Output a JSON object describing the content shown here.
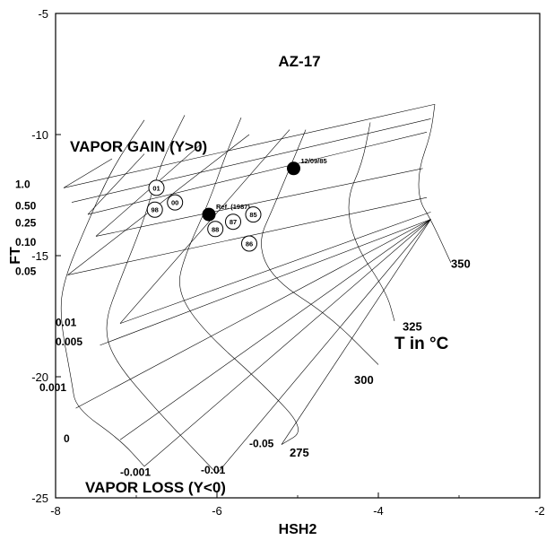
{
  "chart_data": {
    "type": "scatter",
    "title": "AZ-17",
    "xlabel": "HSH2",
    "ylabel": "FT",
    "xlim": [
      -8,
      -2
    ],
    "ylim": [
      -25,
      -5
    ],
    "xticks": [
      "-8",
      "-6",
      "-4",
      "-2"
    ],
    "yticks": [
      "-5",
      "-10",
      "-15",
      "-20",
      "-25"
    ],
    "annotations": {
      "vapor_gain": "VAPOR GAIN (Y>0)",
      "vapor_loss": "VAPOR LOSS (Y<0)",
      "temp_unit": "T in °C"
    },
    "y_labels": [
      {
        "label": "1.0",
        "x": -8.5,
        "y": -12.2
      },
      {
        "label": "0.50",
        "x": -8.5,
        "y": -13.1
      },
      {
        "label": "0.25",
        "x": -8.5,
        "y": -13.8
      },
      {
        "label": "0.10",
        "x": -8.5,
        "y": -14.6
      },
      {
        "label": "0.05",
        "x": -8.5,
        "y": -15.8
      },
      {
        "label": "0.01",
        "x": -8.0,
        "y": -17.9
      },
      {
        "label": "0.005",
        "x": -8.0,
        "y": -18.7
      },
      {
        "label": "0.001",
        "x": -8.2,
        "y": -20.6
      },
      {
        "label": "0",
        "x": -7.9,
        "y": -22.7
      },
      {
        "label": "-0.001",
        "x": -7.2,
        "y": -24.1
      },
      {
        "label": "-0.01",
        "x": -6.2,
        "y": -24.0
      },
      {
        "label": "-0.05",
        "x": -5.6,
        "y": -22.9
      }
    ],
    "temperature_labels": [
      {
        "label": "275",
        "x": -5.1,
        "y": -23.3
      },
      {
        "label": "300",
        "x": -4.3,
        "y": -20.3
      },
      {
        "label": "325",
        "x": -3.7,
        "y": -18.1
      },
      {
        "label": "350",
        "x": -3.1,
        "y": -15.5
      }
    ],
    "points": [
      {
        "label": "01",
        "x": -6.75,
        "y": -12.2,
        "marker": "open"
      },
      {
        "label": "00",
        "x": -6.52,
        "y": -12.8,
        "marker": "open"
      },
      {
        "label": "98",
        "x": -6.77,
        "y": -13.1,
        "marker": "open"
      },
      {
        "label": "Ref. (1987)",
        "x": -6.1,
        "y": -13.3,
        "marker": "filled"
      },
      {
        "label": "12/09/85",
        "x": -5.05,
        "y": -11.4,
        "marker": "filled"
      },
      {
        "label": "85",
        "x": -5.55,
        "y": -13.3,
        "marker": "open"
      },
      {
        "label": "87",
        "x": -5.8,
        "y": -13.6,
        "marker": "open"
      },
      {
        "label": "88",
        "x": -6.02,
        "y": -13.9,
        "marker": "open"
      },
      {
        "label": "86",
        "x": -5.6,
        "y": -14.5,
        "marker": "open"
      }
    ],
    "grid": {
      "converge_point": [
        -3.35,
        -13.5
      ],
      "fan_lines": [
        {
          "y": 0.005,
          "start": [
            -7.45,
            -18.7
          ]
        },
        {
          "y": 0.001,
          "start": [
            -7.75,
            -21.3
          ]
        },
        {
          "y": 0,
          "start": [
            -7.2,
            -22.6
          ]
        },
        {
          "y": -0.001,
          "start": [
            -6.9,
            -23.7
          ]
        },
        {
          "y": -0.01,
          "start": [
            -6.0,
            -24.0
          ]
        },
        {
          "y": -0.05,
          "start": [
            -5.2,
            -22.8
          ]
        }
      ],
      "gain_lines": [
        {
          "y": 1.0,
          "from": [
            -7.9,
            -12.2
          ],
          "to": [
            -3.3,
            -8.75
          ]
        },
        {
          "y": 0.5,
          "from": [
            -7.8,
            -12.8
          ],
          "to": [
            -3.35,
            -9.35
          ]
        },
        {
          "y": 0.25,
          "from": [
            -7.6,
            -13.3
          ],
          "to": [
            -3.4,
            -9.9
          ]
        },
        {
          "y": 0.1,
          "from": [
            -7.5,
            -14.2
          ],
          "to": [
            -3.45,
            -11.4
          ]
        },
        {
          "y": 0.05,
          "from": [
            -7.85,
            -15.8
          ],
          "to": [
            -3.4,
            -12.6
          ]
        },
        {
          "y": 0.01,
          "from": [
            -7.2,
            -17.8
          ],
          "to": [
            -3.35,
            -13.2
          ]
        }
      ],
      "isotherms": [
        {
          "label": "275",
          "points": [
            [
              -6.9,
              -9.4
            ],
            [
              -7.3,
              -11.4
            ],
            [
              -7.6,
              -13.6
            ],
            [
              -7.9,
              -16.0
            ],
            [
              -7.95,
              -17.5
            ],
            [
              -7.8,
              -20.2
            ],
            [
              -7.75,
              -21.3
            ],
            [
              -7.2,
              -22.6
            ],
            [
              -6.9,
              -23.7
            ]
          ]
        },
        {
          "label": "300",
          "points": [
            [
              -6.4,
              -9.2
            ],
            [
              -6.7,
              -11.2
            ],
            [
              -6.9,
              -13.5
            ],
            [
              -7.2,
              -16.0
            ],
            [
              -7.4,
              -17.8
            ],
            [
              -7.3,
              -19.2
            ],
            [
              -6.8,
              -21.2
            ],
            [
              -6.0,
              -24.0
            ]
          ]
        },
        {
          "label": "325",
          "points": [
            [
              -5.7,
              -9.3
            ],
            [
              -5.9,
              -10.9
            ],
            [
              -6.1,
              -12.8
            ],
            [
              -6.4,
              -15.0
            ],
            [
              -6.5,
              -16.4
            ],
            [
              -6.2,
              -18.0
            ],
            [
              -5.4,
              -20.4
            ],
            [
              -4.9,
              -22.2
            ],
            [
              -5.2,
              -22.8
            ]
          ]
        },
        {
          "label": "350",
          "points": [
            [
              -4.9,
              -9.8
            ],
            [
              -5.1,
              -11.4
            ],
            [
              -5.3,
              -13.0
            ],
            [
              -5.5,
              -14.5
            ],
            [
              -5.3,
              -16.0
            ],
            [
              -4.6,
              -17.5
            ],
            [
              -4.0,
              -19.5
            ]
          ]
        },
        {
          "label": "iso5",
          "points": [
            [
              -4.1,
              -9.5
            ],
            [
              -4.2,
              -11.2
            ],
            [
              -4.4,
              -12.7
            ],
            [
              -4.3,
              -14.5
            ],
            [
              -3.9,
              -16.5
            ],
            [
              -3.8,
              -17.7
            ]
          ]
        },
        {
          "label": "iso6",
          "points": [
            [
              -3.3,
              -8.75
            ],
            [
              -3.35,
              -10.0
            ],
            [
              -3.5,
              -11.4
            ],
            [
              -3.5,
              -12.7
            ],
            [
              -3.35,
              -13.5
            ],
            [
              -3.1,
              -15.3
            ]
          ]
        }
      ],
      "diagonal_lines": [
        {
          "from": [
            -7.9,
            -12.2
          ],
          "to": [
            -7.3,
            -11.0
          ]
        },
        {
          "from": [
            -7.6,
            -13.3
          ],
          "to": [
            -6.9,
            -10.8
          ]
        },
        {
          "from": [
            -7.5,
            -14.2
          ],
          "to": [
            -6.2,
            -10.4
          ]
        },
        {
          "from": [
            -7.85,
            -15.8
          ],
          "to": [
            -5.6,
            -10.0
          ]
        },
        {
          "from": [
            -7.2,
            -17.8
          ],
          "to": [
            -5.1,
            -9.8
          ]
        }
      ]
    }
  }
}
